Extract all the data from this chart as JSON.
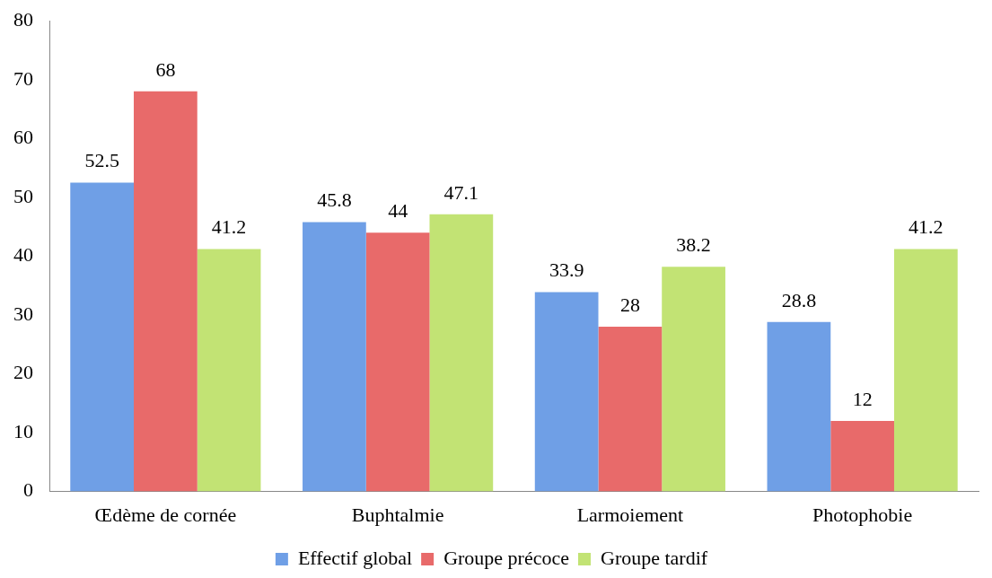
{
  "chart_data": {
    "type": "bar",
    "categories": [
      "Œdème de cornée",
      "Buphtalmie",
      "Larmoiement",
      "Photophobie"
    ],
    "series": [
      {
        "name": "Effectif global",
        "color": "#6f9fe6",
        "values": [
          52.5,
          45.8,
          33.9,
          28.8
        ]
      },
      {
        "name": "Groupe précoce",
        "color": "#e86a6a",
        "values": [
          68,
          44,
          28,
          12
        ]
      },
      {
        "name": "Groupe tardif",
        "color": "#c2e374",
        "values": [
          41.2,
          47.1,
          38.2,
          41.2
        ]
      }
    ],
    "ylim": [
      0,
      80
    ],
    "yticks": [
      0,
      10,
      20,
      30,
      40,
      50,
      60,
      70,
      80
    ],
    "grid": false,
    "legend": "bottom",
    "data_labels": true
  }
}
